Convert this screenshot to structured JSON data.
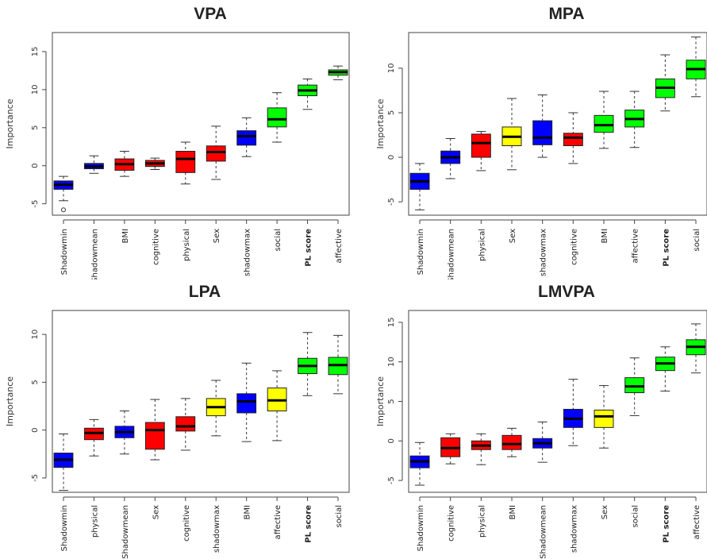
{
  "colors": {
    "blue": "#0000ff",
    "red": "#ff0000",
    "yellow": "#ffff00",
    "green": "#00ff00"
  },
  "chart_data": [
    {
      "type": "boxplot",
      "title": "VPA",
      "ylabel": "Importance",
      "ylim": [
        -6.5,
        17.5
      ],
      "yticks": [
        -5,
        0,
        5,
        10,
        15
      ],
      "categories": [
        "Shadowmin",
        "Shadowmean",
        "BMI",
        "cognitive",
        "physical",
        "Sex",
        "shadowmax",
        "social",
        "PL score",
        "affective"
      ],
      "bold_categories": [
        "PL score"
      ],
      "colors": [
        "blue",
        "blue",
        "red",
        "red",
        "red",
        "red",
        "blue",
        "green",
        "green",
        "green"
      ],
      "boxes": [
        {
          "whislo": -4.6,
          "q1": -3.1,
          "med": -2.5,
          "q3": -2.0,
          "whishi": -1.4,
          "outliers": [
            -5.8
          ]
        },
        {
          "whislo": -1.0,
          "q1": -0.4,
          "med": -0.1,
          "q3": 0.3,
          "whishi": 1.3,
          "outliers": []
        },
        {
          "whislo": -1.4,
          "q1": -0.6,
          "med": 0.2,
          "q3": 0.9,
          "whishi": 1.9,
          "outliers": []
        },
        {
          "whislo": -0.5,
          "q1": -0.1,
          "med": 0.3,
          "q3": 0.7,
          "whishi": 1.0,
          "outliers": []
        },
        {
          "whislo": -2.4,
          "q1": -0.9,
          "med": 0.9,
          "q3": 1.9,
          "whishi": 3.1,
          "outliers": []
        },
        {
          "whislo": -1.8,
          "q1": 0.6,
          "med": 1.8,
          "q3": 2.6,
          "whishi": 5.2,
          "outliers": []
        },
        {
          "whislo": 1.2,
          "q1": 2.7,
          "med": 3.9,
          "q3": 4.6,
          "whishi": 6.3,
          "outliers": []
        },
        {
          "whislo": 3.1,
          "q1": 5.1,
          "med": 6.1,
          "q3": 7.6,
          "whishi": 9.6,
          "outliers": []
        },
        {
          "whislo": 7.4,
          "q1": 9.2,
          "med": 9.9,
          "q3": 10.6,
          "whishi": 11.4,
          "outliers": []
        },
        {
          "whislo": 11.3,
          "q1": 11.9,
          "med": 12.3,
          "q3": 12.6,
          "whishi": 13.1,
          "outliers": []
        }
      ]
    },
    {
      "type": "boxplot",
      "title": "MPA",
      "ylabel": "Importance",
      "ylim": [
        -6.5,
        14
      ],
      "yticks": [
        -5,
        0,
        5,
        10
      ],
      "categories": [
        "Shadowmin",
        "Shadowmean",
        "physical",
        "Sex",
        "shadowmax",
        "cognitive",
        "BMI",
        "affective",
        "PL score",
        "social"
      ],
      "bold_categories": [
        "PL score"
      ],
      "colors": [
        "blue",
        "blue",
        "red",
        "yellow",
        "blue",
        "red",
        "green",
        "green",
        "green",
        "green"
      ],
      "boxes": [
        {
          "whislo": -5.9,
          "q1": -3.6,
          "med": -2.7,
          "q3": -1.8,
          "whishi": -0.7,
          "outliers": []
        },
        {
          "whislo": -2.4,
          "q1": -0.7,
          "med": 0.0,
          "q3": 0.7,
          "whishi": 2.1,
          "outliers": []
        },
        {
          "whislo": -1.5,
          "q1": 0.0,
          "med": 1.6,
          "q3": 2.6,
          "whishi": 2.9,
          "outliers": []
        },
        {
          "whislo": -1.4,
          "q1": 1.3,
          "med": 2.3,
          "q3": 3.4,
          "whishi": 6.6,
          "outliers": []
        },
        {
          "whislo": 0.0,
          "q1": 1.4,
          "med": 2.2,
          "q3": 4.1,
          "whishi": 7.0,
          "outliers": []
        },
        {
          "whislo": -0.7,
          "q1": 1.3,
          "med": 2.2,
          "q3": 2.7,
          "whishi": 5.0,
          "outliers": []
        },
        {
          "whislo": 1.0,
          "q1": 2.8,
          "med": 3.6,
          "q3": 4.7,
          "whishi": 7.4,
          "outliers": []
        },
        {
          "whislo": 1.1,
          "q1": 3.4,
          "med": 4.3,
          "q3": 5.3,
          "whishi": 7.4,
          "outliers": []
        },
        {
          "whislo": 5.2,
          "q1": 6.7,
          "med": 7.8,
          "q3": 8.8,
          "whishi": 11.5,
          "outliers": []
        },
        {
          "whislo": 6.8,
          "q1": 8.8,
          "med": 9.9,
          "q3": 10.9,
          "whishi": 13.5,
          "outliers": []
        }
      ]
    },
    {
      "type": "boxplot",
      "title": "LPA",
      "ylabel": "Importance",
      "ylim": [
        -6.5,
        12.5
      ],
      "yticks": [
        -5,
        0,
        5,
        10
      ],
      "categories": [
        "Shadowmin",
        "physical",
        "Shadowmean",
        "Sex",
        "cognitive",
        "shadowmax",
        "BMI",
        "affective",
        "PL score",
        "social"
      ],
      "bold_categories": [
        "PL score"
      ],
      "colors": [
        "blue",
        "red",
        "blue",
        "red",
        "red",
        "yellow",
        "blue",
        "yellow",
        "green",
        "green"
      ],
      "boxes": [
        {
          "whislo": -6.3,
          "q1": -3.9,
          "med": -3.1,
          "q3": -2.4,
          "whishi": -0.4,
          "outliers": []
        },
        {
          "whislo": -2.7,
          "q1": -1.0,
          "med": -0.3,
          "q3": 0.2,
          "whishi": 1.1,
          "outliers": []
        },
        {
          "whislo": -2.5,
          "q1": -0.8,
          "med": -0.2,
          "q3": 0.4,
          "whishi": 2.0,
          "outliers": []
        },
        {
          "whislo": -3.1,
          "q1": -2.0,
          "med": 0.0,
          "q3": 0.8,
          "whishi": 3.2,
          "outliers": []
        },
        {
          "whislo": -2.1,
          "q1": -0.1,
          "med": 0.4,
          "q3": 1.4,
          "whishi": 3.3,
          "outliers": []
        },
        {
          "whislo": -0.6,
          "q1": 1.5,
          "med": 2.4,
          "q3": 3.3,
          "whishi": 5.2,
          "outliers": []
        },
        {
          "whislo": -1.2,
          "q1": 1.8,
          "med": 3.0,
          "q3": 3.8,
          "whishi": 7.0,
          "outliers": []
        },
        {
          "whislo": -1.1,
          "q1": 2.0,
          "med": 3.1,
          "q3": 4.4,
          "whishi": 6.2,
          "outliers": []
        },
        {
          "whislo": 3.6,
          "q1": 5.9,
          "med": 6.7,
          "q3": 7.5,
          "whishi": 10.2,
          "outliers": []
        },
        {
          "whislo": 3.8,
          "q1": 5.8,
          "med": 6.8,
          "q3": 7.6,
          "whishi": 9.9,
          "outliers": []
        }
      ]
    },
    {
      "type": "boxplot",
      "title": "LMVPA",
      "ylabel": "Importance",
      "ylim": [
        -6.5,
        16.5
      ],
      "yticks": [
        -5,
        0,
        5,
        10,
        15
      ],
      "categories": [
        "Shadowmin",
        "cognitive",
        "physical",
        "BMI",
        "Shadowmean",
        "shadowmax",
        "Sex",
        "social",
        "PL score",
        "affective"
      ],
      "bold_categories": [
        "PL score"
      ],
      "colors": [
        "blue",
        "red",
        "red",
        "red",
        "blue",
        "blue",
        "yellow",
        "green",
        "green",
        "green"
      ],
      "boxes": [
        {
          "whislo": -5.6,
          "q1": -3.4,
          "med": -2.6,
          "q3": -1.9,
          "whishi": -0.2,
          "outliers": []
        },
        {
          "whislo": -2.9,
          "q1": -2.0,
          "med": -0.9,
          "q3": 0.4,
          "whishi": 0.9,
          "outliers": []
        },
        {
          "whislo": -3.0,
          "q1": -1.1,
          "med": -0.6,
          "q3": 0.0,
          "whishi": 0.9,
          "outliers": []
        },
        {
          "whislo": -2.0,
          "q1": -1.1,
          "med": -0.4,
          "q3": 0.7,
          "whishi": 1.6,
          "outliers": []
        },
        {
          "whislo": -2.7,
          "q1": -0.9,
          "med": -0.3,
          "q3": 0.3,
          "whishi": 2.4,
          "outliers": []
        },
        {
          "whislo": -0.6,
          "q1": 1.7,
          "med": 2.8,
          "q3": 4.0,
          "whishi": 7.8,
          "outliers": []
        },
        {
          "whislo": -0.9,
          "q1": 1.7,
          "med": 3.1,
          "q3": 3.9,
          "whishi": 7.0,
          "outliers": []
        },
        {
          "whislo": 3.2,
          "q1": 6.1,
          "med": 6.9,
          "q3": 8.0,
          "whishi": 10.5,
          "outliers": []
        },
        {
          "whislo": 6.3,
          "q1": 8.9,
          "med": 9.8,
          "q3": 10.6,
          "whishi": 11.9,
          "outliers": []
        },
        {
          "whislo": 8.6,
          "q1": 10.9,
          "med": 11.9,
          "q3": 12.8,
          "whishi": 14.8,
          "outliers": []
        }
      ]
    }
  ]
}
